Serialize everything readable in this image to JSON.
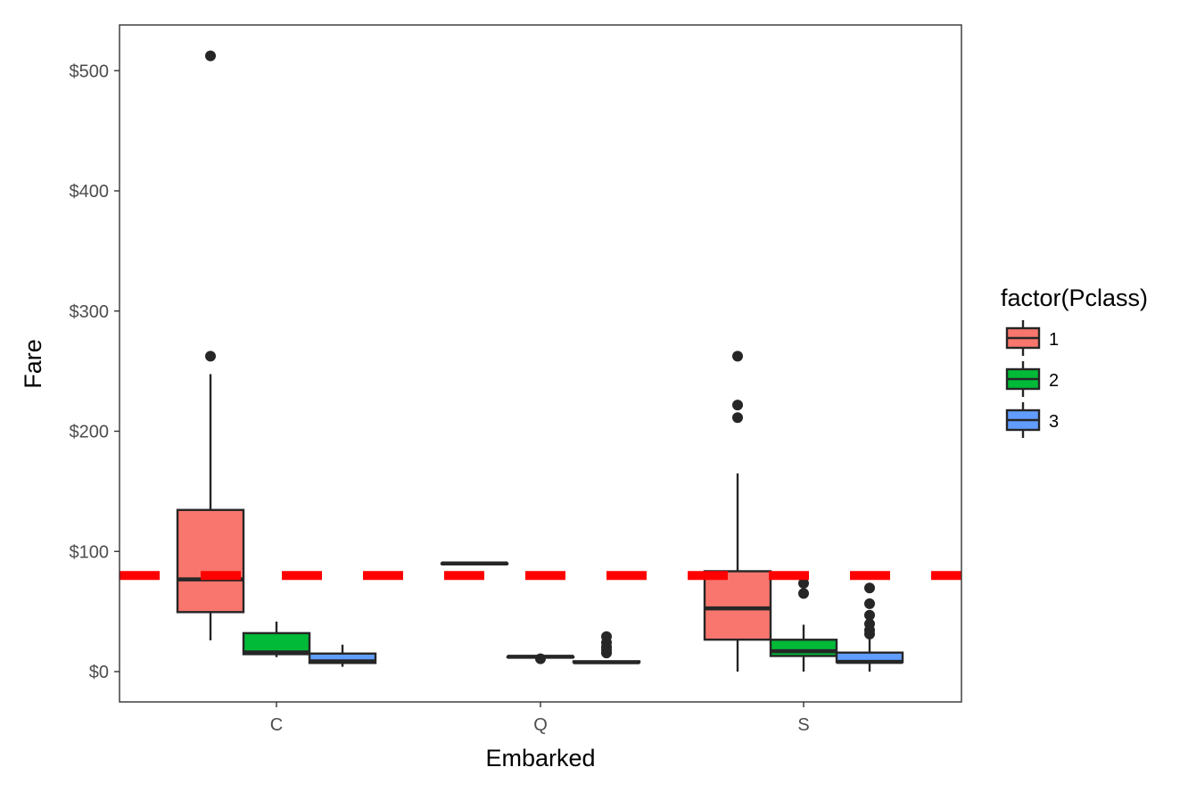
{
  "chart_data": {
    "type": "boxplot",
    "xlabel": "Embarked",
    "ylabel": "Fare",
    "ylim": [
      -25,
      535
    ],
    "y_ticks": [
      {
        "value": 0,
        "label": "$0"
      },
      {
        "value": 100,
        "label": "$100"
      },
      {
        "value": 200,
        "label": "$200"
      },
      {
        "value": 300,
        "label": "$300"
      },
      {
        "value": 400,
        "label": "$400"
      },
      {
        "value": 500,
        "label": "$500"
      }
    ],
    "categories": [
      "C",
      "Q",
      "S"
    ],
    "legend": {
      "title": "factor(Pclass)",
      "position": "right",
      "entries": [
        {
          "label": "1",
          "color": "#F8766D"
        },
        {
          "label": "2",
          "color": "#00BA38"
        },
        {
          "label": "3",
          "color": "#619CFF"
        }
      ]
    },
    "reference_line": {
      "value": 80,
      "color": "#FF0000",
      "style": "dashed"
    },
    "grid": false,
    "series": [
      {
        "name": "1",
        "color": "#F8766D",
        "boxes": [
          {
            "category": "C",
            "lower": 26,
            "q1": 49.5,
            "median": 76.7,
            "q3": 134.5,
            "upper": 247.5,
            "outliers": [
              262.4,
              512.3
            ]
          },
          {
            "category": "Q",
            "lower": 90,
            "q1": 90,
            "median": 90,
            "q3": 90,
            "upper": 90,
            "outliers": []
          },
          {
            "category": "S",
            "lower": 0,
            "q1": 26.6,
            "median": 52.6,
            "q3": 83.5,
            "upper": 164.9,
            "outliers": [
              211.3,
              221.8,
              262.4
            ]
          }
        ]
      },
      {
        "name": "2",
        "color": "#00BA38",
        "boxes": [
          {
            "category": "C",
            "lower": 12,
            "q1": 14.5,
            "median": 16,
            "q3": 32,
            "upper": 41.6,
            "outliers": []
          },
          {
            "category": "Q",
            "lower": 12.35,
            "q1": 12.35,
            "median": 12.35,
            "q3": 12.35,
            "upper": 12.35,
            "outliers": [
              10.7
            ]
          },
          {
            "category": "S",
            "lower": 0,
            "q1": 13,
            "median": 17,
            "q3": 26.5,
            "upper": 39,
            "outliers": [
              65,
              73.5
            ]
          }
        ]
      },
      {
        "name": "3",
        "color": "#619CFF",
        "boxes": [
          {
            "category": "C",
            "lower": 4,
            "q1": 7.2,
            "median": 8.5,
            "q3": 15,
            "upper": 22.4,
            "outliers": []
          },
          {
            "category": "Q",
            "lower": 6.75,
            "q1": 7.75,
            "median": 7.75,
            "q3": 8.5,
            "upper": 9,
            "outliers": [
              15.5,
              18,
              20.6,
              24.15,
              29.1
            ]
          },
          {
            "category": "S",
            "lower": 0,
            "q1": 7.85,
            "median": 8.05,
            "q3": 15.8,
            "upper": 27.9,
            "outliers": [
              31.3,
              34.4,
              39.7,
              46.9,
              56.5,
              69.55
            ]
          }
        ]
      }
    ]
  }
}
